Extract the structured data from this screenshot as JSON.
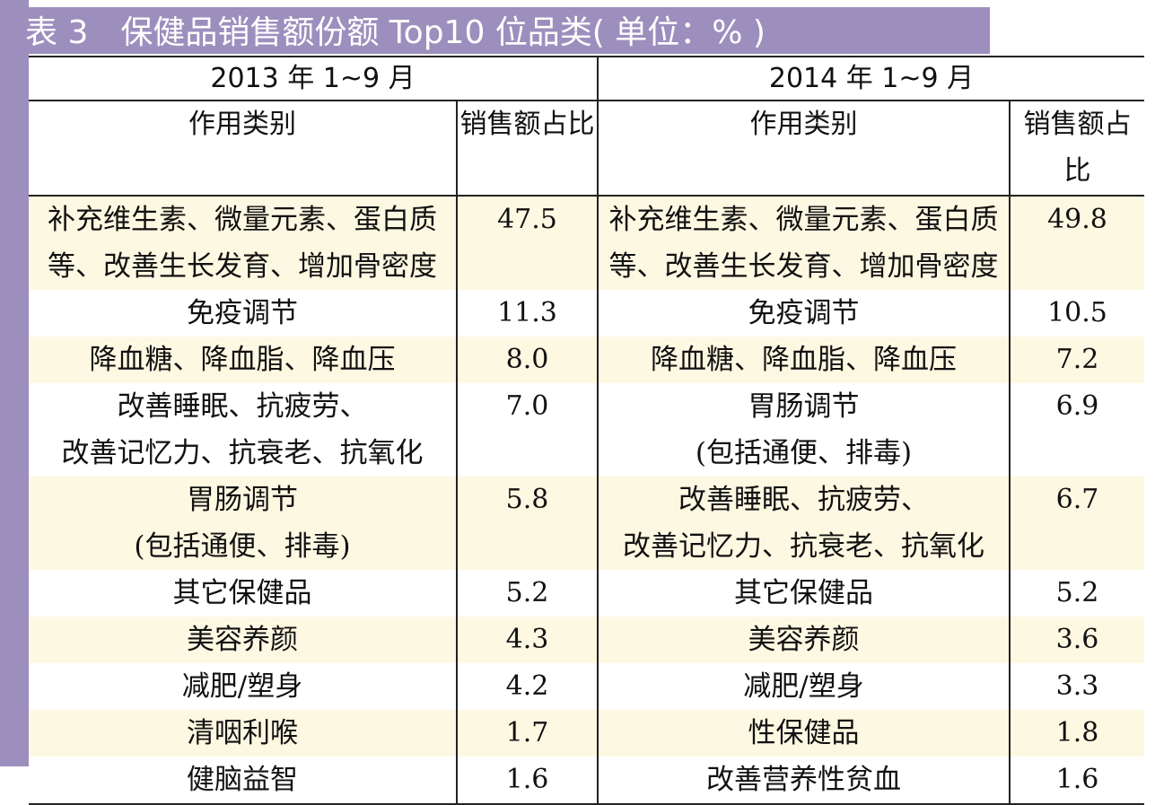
{
  "title": "表 3　保健品销售额份额 Top10 位品类( 单位：% )",
  "periods": [
    "2013 年 1~9 月",
    "2014 年 1~9 月"
  ],
  "column_headers": {
    "category": "作用类别",
    "share": "销售额占比"
  },
  "rows": [
    {
      "left_lines": [
        "补充维生素、微量元素、蛋白质",
        "等、改善生长发育、增加骨密度"
      ],
      "left_value": "47.5",
      "right_lines": [
        "补充维生素、微量元素、蛋白质",
        "等、改善生长发育、增加骨密度"
      ],
      "right_value": "49.8"
    },
    {
      "left_lines": [
        "免疫调节"
      ],
      "left_value": "11.3",
      "right_lines": [
        "免疫调节"
      ],
      "right_value": "10.5"
    },
    {
      "left_lines": [
        "降血糖、降血脂、降血压"
      ],
      "left_value": "8.0",
      "right_lines": [
        "降血糖、降血脂、降血压"
      ],
      "right_value": "7.2"
    },
    {
      "left_lines": [
        "改善睡眠、抗疲劳、",
        "改善记忆力、抗衰老、抗氧化"
      ],
      "left_value": "7.0",
      "right_lines": [
        "胃肠调节",
        "(包括通便、排毒)"
      ],
      "right_value": "6.9"
    },
    {
      "left_lines": [
        "胃肠调节",
        "(包括通便、排毒)"
      ],
      "left_value": "5.8",
      "right_lines": [
        "改善睡眠、抗疲劳、",
        "改善记忆力、抗衰老、抗氧化"
      ],
      "right_value": "6.7"
    },
    {
      "left_lines": [
        "其它保健品"
      ],
      "left_value": "5.2",
      "right_lines": [
        "其它保健品"
      ],
      "right_value": "5.2"
    },
    {
      "left_lines": [
        "美容养颜"
      ],
      "left_value": "4.3",
      "right_lines": [
        "美容养颜"
      ],
      "right_value": "3.6"
    },
    {
      "left_lines": [
        "减肥/塑身"
      ],
      "left_value": "4.2",
      "right_lines": [
        "减肥/塑身"
      ],
      "right_value": "3.3"
    },
    {
      "left_lines": [
        "清咽利喉"
      ],
      "left_value": "1.7",
      "right_lines": [
        "性保健品"
      ],
      "right_value": "1.8"
    },
    {
      "left_lines": [
        "健脑益智"
      ],
      "left_value": "1.6",
      "right_lines": [
        "改善营养性贫血"
      ],
      "right_value": "1.6"
    }
  ],
  "colors": {
    "accent_purple": "#9c8fbd",
    "row_shade": "#fdf8e2",
    "rule": "#222222"
  }
}
